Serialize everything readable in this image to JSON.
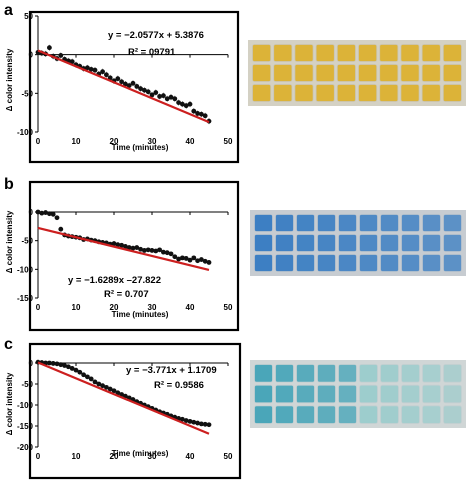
{
  "panels": [
    {
      "letter": "a",
      "chart_data": {
        "type": "scatter",
        "xlabel": "Time (minutes)",
        "ylabel": "Δ color intensity",
        "xlim": [
          0,
          50
        ],
        "ylim": [
          -100,
          50
        ],
        "xticks": [
          0,
          10,
          20,
          30,
          40,
          50
        ],
        "yticks": [
          50,
          0,
          -50,
          -100
        ],
        "equation": "y = −2.0577x + 5.3876",
        "r2": "R² = 09791",
        "trendline": {
          "slope": -2.0577,
          "intercept": 5.3876,
          "x_range": [
            0,
            45
          ],
          "color": "#cc1f1f"
        },
        "error_bars": true,
        "series": [
          {
            "x": [
              0,
              1,
              2,
              3,
              4,
              5,
              6,
              7,
              8,
              9,
              10,
              11,
              12,
              13,
              14,
              15,
              16,
              17,
              18,
              19,
              20,
              21,
              22,
              23,
              24,
              25,
              26,
              27,
              28,
              29,
              30,
              31,
              32,
              33,
              34,
              35,
              36,
              37,
              38,
              39,
              40,
              41,
              42,
              43,
              44,
              45
            ],
            "y": [
              3,
              2,
              1,
              9,
              -2,
              -5,
              -1,
              -6,
              -8,
              -9,
              -13,
              -15,
              -18,
              -17,
              -19,
              -20,
              -25,
              -22,
              -26,
              -30,
              -34,
              -31,
              -35,
              -38,
              -40,
              -37,
              -41,
              -44,
              -46,
              -48,
              -52,
              -49,
              -54,
              -53,
              -57,
              -55,
              -57,
              -62,
              -64,
              -66,
              -64,
              -73,
              -76,
              -77,
              -79,
              -86
            ]
          }
        ]
      },
      "tray": {
        "colors": {
          "base": "#dcb338",
          "light": "#e8c553",
          "grid": "#c9c5b5",
          "frame": "#d4d1c4"
        }
      }
    },
    {
      "letter": "b",
      "chart_data": {
        "type": "scatter",
        "xlabel": "Time (minutes)",
        "ylabel": "Δ color intensity",
        "xlim": [
          0,
          50
        ],
        "ylim": [
          -150,
          0
        ],
        "xticks": [
          0,
          10,
          20,
          30,
          40,
          50
        ],
        "yticks": [
          0,
          -50,
          -100,
          -150
        ],
        "equation": "y = −1.6289x –27.822",
        "r2": "R² = 0.707",
        "trendline": {
          "slope": -1.6289,
          "intercept": -27.822,
          "x_range": [
            0,
            45
          ],
          "color": "#cc1f1f"
        },
        "error_bars": false,
        "series": [
          {
            "x": [
              0,
              1,
              2,
              3,
              4,
              5,
              6,
              7,
              8,
              9,
              10,
              11,
              12,
              13,
              14,
              15,
              16,
              17,
              18,
              19,
              20,
              21,
              22,
              23,
              24,
              25,
              26,
              27,
              28,
              29,
              30,
              31,
              32,
              33,
              34,
              35,
              36,
              37,
              38,
              39,
              40,
              41,
              42,
              43,
              44,
              45
            ],
            "y": [
              0,
              -2,
              -1,
              -3,
              -4,
              -10,
              -30,
              -40,
              -42,
              -43,
              -44,
              -45,
              -48,
              -47,
              -49,
              -50,
              -52,
              -53,
              -54,
              -56,
              -55,
              -57,
              -58,
              -60,
              -62,
              -63,
              -62,
              -65,
              -67,
              -66,
              -67,
              -68,
              -66,
              -70,
              -71,
              -73,
              -78,
              -82,
              -80,
              -81,
              -84,
              -80,
              -85,
              -83,
              -86,
              -88
            ]
          }
        ]
      },
      "tray": {
        "colors": {
          "base": "#3d7fc3",
          "light": "#5b9ad6",
          "grid": "#b9c3cc",
          "frame": "#c7ccd1"
        }
      }
    },
    {
      "letter": "c",
      "chart_data": {
        "type": "scatter",
        "xlabel": "Time (minutes)",
        "ylabel": "Δ color intensity",
        "xlim": [
          0,
          50
        ],
        "ylim": [
          -200,
          0
        ],
        "xticks": [
          0,
          10,
          20,
          30,
          40,
          50
        ],
        "yticks": [
          0,
          -50,
          -100,
          -150,
          -200
        ],
        "equation": "y = −3.771x + 1.1709",
        "r2": "R² = 0.9586",
        "trendline": {
          "slope": -3.771,
          "intercept": 1.1709,
          "x_range": [
            0,
            45
          ],
          "color": "#cc1f1f"
        },
        "error_bars": false,
        "series": [
          {
            "x": [
              0,
              1,
              2,
              3,
              4,
              5,
              6,
              7,
              8,
              9,
              10,
              11,
              12,
              13,
              14,
              15,
              16,
              17,
              18,
              19,
              20,
              21,
              22,
              23,
              24,
              25,
              26,
              27,
              28,
              29,
              30,
              31,
              32,
              33,
              34,
              35,
              36,
              37,
              38,
              39,
              40,
              41,
              42,
              43,
              44,
              45
            ],
            "y": [
              2,
              1,
              0,
              0,
              -1,
              -2,
              -4,
              -6,
              -9,
              -13,
              -17,
              -22,
              -28,
              -33,
              -38,
              -45,
              -50,
              -54,
              -58,
              -62,
              -66,
              -71,
              -75,
              -79,
              -83,
              -87,
              -92,
              -96,
              -100,
              -104,
              -108,
              -112,
              -116,
              -119,
              -122,
              -126,
              -129,
              -132,
              -134,
              -137,
              -139,
              -141,
              -143,
              -145,
              -146,
              -147
            ]
          }
        ]
      },
      "tray": {
        "colors": {
          "base": "#4aa6b9",
          "light": "#8cc9c9",
          "grid": "#c3cfd1",
          "frame": "#d0d6d6"
        }
      }
    }
  ]
}
